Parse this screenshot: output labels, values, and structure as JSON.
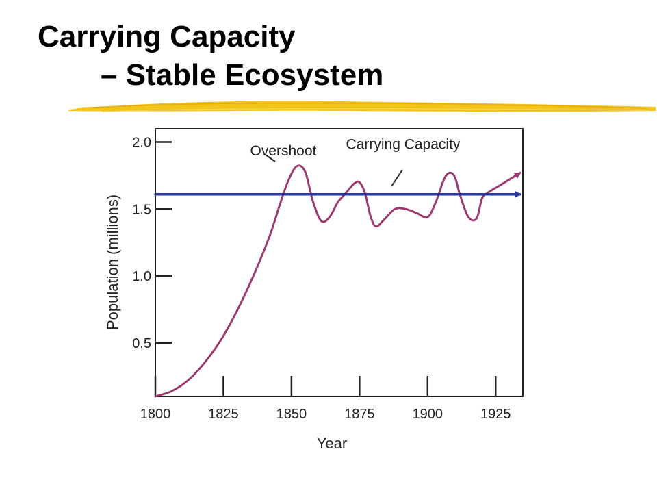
{
  "slide": {
    "title_line1": "Carrying Capacity",
    "title_line2": "– Stable Ecosystem",
    "accent_color": "#f2c418"
  },
  "chart_data": {
    "type": "line",
    "xlabel": "Year",
    "ylabel": "Population (millions)",
    "xlim": [
      1800,
      1935
    ],
    "ylim": [
      0.1,
      2.1
    ],
    "x_ticks": [
      1800,
      1825,
      1850,
      1875,
      1900,
      1925
    ],
    "y_ticks": [
      0.5,
      1.0,
      1.5,
      2.0
    ],
    "x_tick_labels": [
      "1800",
      "1825",
      "1850",
      "1875",
      "1900",
      "1925"
    ],
    "y_tick_labels": [
      "0.5",
      "1.0",
      "1.5",
      "2.0"
    ],
    "grid": false,
    "series": [
      {
        "color": "#9b3a6e",
        "x": [
          1800,
          1806,
          1812,
          1818,
          1824,
          1830,
          1836,
          1842,
          1846,
          1849,
          1852,
          1855,
          1858,
          1861,
          1864,
          1867,
          1870,
          1873,
          1875,
          1877,
          1879,
          1881,
          1884,
          1888,
          1892,
          1896,
          1900,
          1903,
          1906,
          1908,
          1910,
          1912,
          1915,
          1918,
          1920,
          1922,
          1926,
          1930,
          1934
        ],
        "y": [
          0.1,
          0.14,
          0.22,
          0.35,
          0.52,
          0.74,
          1.0,
          1.3,
          1.55,
          1.72,
          1.82,
          1.78,
          1.55,
          1.41,
          1.44,
          1.55,
          1.62,
          1.69,
          1.7,
          1.62,
          1.45,
          1.37,
          1.42,
          1.5,
          1.5,
          1.47,
          1.44,
          1.55,
          1.72,
          1.77,
          1.74,
          1.6,
          1.44,
          1.43,
          1.58,
          1.62,
          1.67,
          1.72,
          1.77
        ]
      },
      {
        "color": "#2b3595",
        "x": [
          1800,
          1934
        ],
        "y": [
          1.61,
          1.61
        ]
      }
    ],
    "annotations": [
      {
        "text": "Overshoot",
        "x": 1847,
        "y": 1.9
      },
      {
        "text": "Carrying Capacity",
        "x": 1891,
        "y": 1.95
      }
    ]
  }
}
